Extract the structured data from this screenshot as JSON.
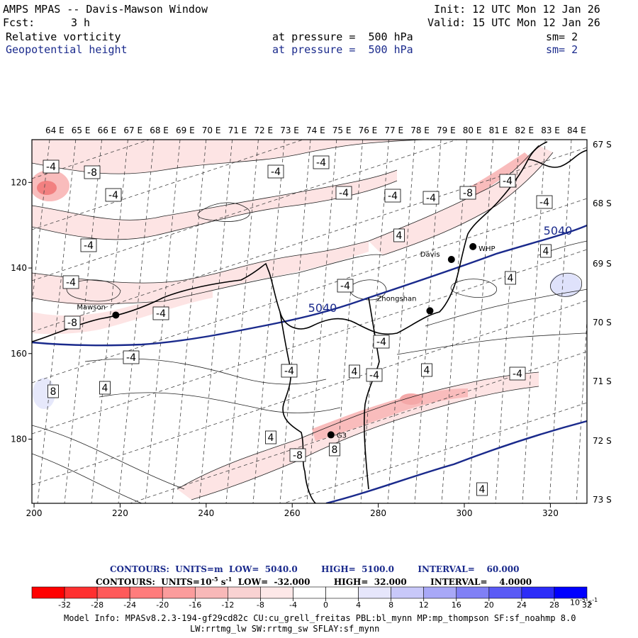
{
  "header": {
    "title": "AMPS MPAS -- Davis-Mawson Window",
    "fcst_label": "Fcst:",
    "fcst_value": "3 h",
    "init": "Init: 12 UTC Mon 12 Jan 26",
    "valid": "Valid: 15 UTC Mon 12 Jan 26",
    "field1": {
      "name": "Relative vorticity",
      "level": "at pressure =  500 hPa",
      "sm": "sm= 2"
    },
    "field2": {
      "name": "Geopotential height",
      "level": "at pressure =  500 hPa",
      "sm": "sm= 2"
    }
  },
  "map": {
    "top_lon_labels": [
      "64 E",
      "65 E",
      "66 E",
      "67 E",
      "68 E",
      "69 E",
      "70 E",
      "71 E",
      "72 E",
      "73 E",
      "74 E",
      "75 E",
      "76 E",
      "77 E",
      "78 E",
      "79 E",
      "80 E",
      "81 E",
      "82 E",
      "83 E",
      "84 E"
    ],
    "right_lat_labels": [
      "67 S",
      "68 S",
      "69 S",
      "70 S",
      "71 S",
      "72 S",
      "73 S"
    ],
    "x_axis_ticks": [
      200,
      220,
      240,
      260,
      280,
      300,
      320
    ],
    "y_axis_ticks": [
      120,
      140,
      160,
      180
    ],
    "stations": [
      {
        "name": "Mawson",
        "x": 219,
        "y": 151
      },
      {
        "name": "Davis",
        "x": 297,
        "y": 138
      },
      {
        "name": "WHP",
        "x": 302,
        "y": 135
      },
      {
        "name": "Zhongshan",
        "x": 292,
        "y": 150
      },
      {
        "name": "G3",
        "x": 269,
        "y": 179
      }
    ],
    "contour_labels": {
      "height": [
        "5040",
        "5040"
      ],
      "vorticity": [
        "-4",
        "-8",
        "-4",
        "-4",
        "-4",
        "-4",
        "-4",
        "-4",
        "-8",
        "-4",
        "-4",
        "-4",
        "-4",
        "-4",
        "4",
        "4",
        "-4",
        "-4",
        "-8",
        "-4",
        "-4",
        "4",
        "4",
        "-4",
        "4",
        "8",
        "4",
        "-8",
        "-4",
        "4",
        "8",
        "4"
      ]
    },
    "colors": {
      "neg_light": "#fde4e4",
      "neg_mid": "#f9bcbc",
      "neg_strong": "#f28080",
      "pos_light": "#dfe2fb",
      "height_line": "#1a2a8c"
    }
  },
  "contours_info": {
    "line1": "CONTOURS:  UNITS=m  LOW=  5040.0        HIGH=  5100.0        INTERVAL=    60.000",
    "line2_prefix": "CONTOURS:  UNITS=10",
    "line2_exp": "-5",
    "line2_unit": "s",
    "line2_unit_exp": "-1",
    "line2_rest": "  LOW=  -32.000        HIGH=  32.000        INTERVAL=    4.0000"
  },
  "colorbar": {
    "colors": [
      "#ff0000",
      "#ff3030",
      "#ff5a5a",
      "#ff7c7c",
      "#fb9c9c",
      "#f8b8b8",
      "#f9d2d2",
      "#fde8e8",
      "#ffffff",
      "#ffffff",
      "#e6e6fb",
      "#c8c8f9",
      "#a8a8f7",
      "#8080f5",
      "#5a5af5",
      "#2c2cf8",
      "#0000ff"
    ],
    "labels": [
      "-32",
      "-28",
      "-24",
      "-20",
      "-16",
      "-12",
      "-8",
      "-4",
      "0",
      "4",
      "8",
      "12",
      "16",
      "20",
      "24",
      "28",
      "32"
    ],
    "units_base": "10",
    "units_exp": "-5",
    "units_s": "s",
    "units_s_exp": "-1"
  },
  "model_info": {
    "line1": "Model Info: MPASv8.2.3-194-gf29cd82c CU:cu_grell_freitas PBL:bl_mynn MP:mp_thompson SF:sf_noahmp 8.0",
    "line2": "LW:rrtmg_lw SW:rrtmg_sw SFLAY:sf_mynn"
  }
}
